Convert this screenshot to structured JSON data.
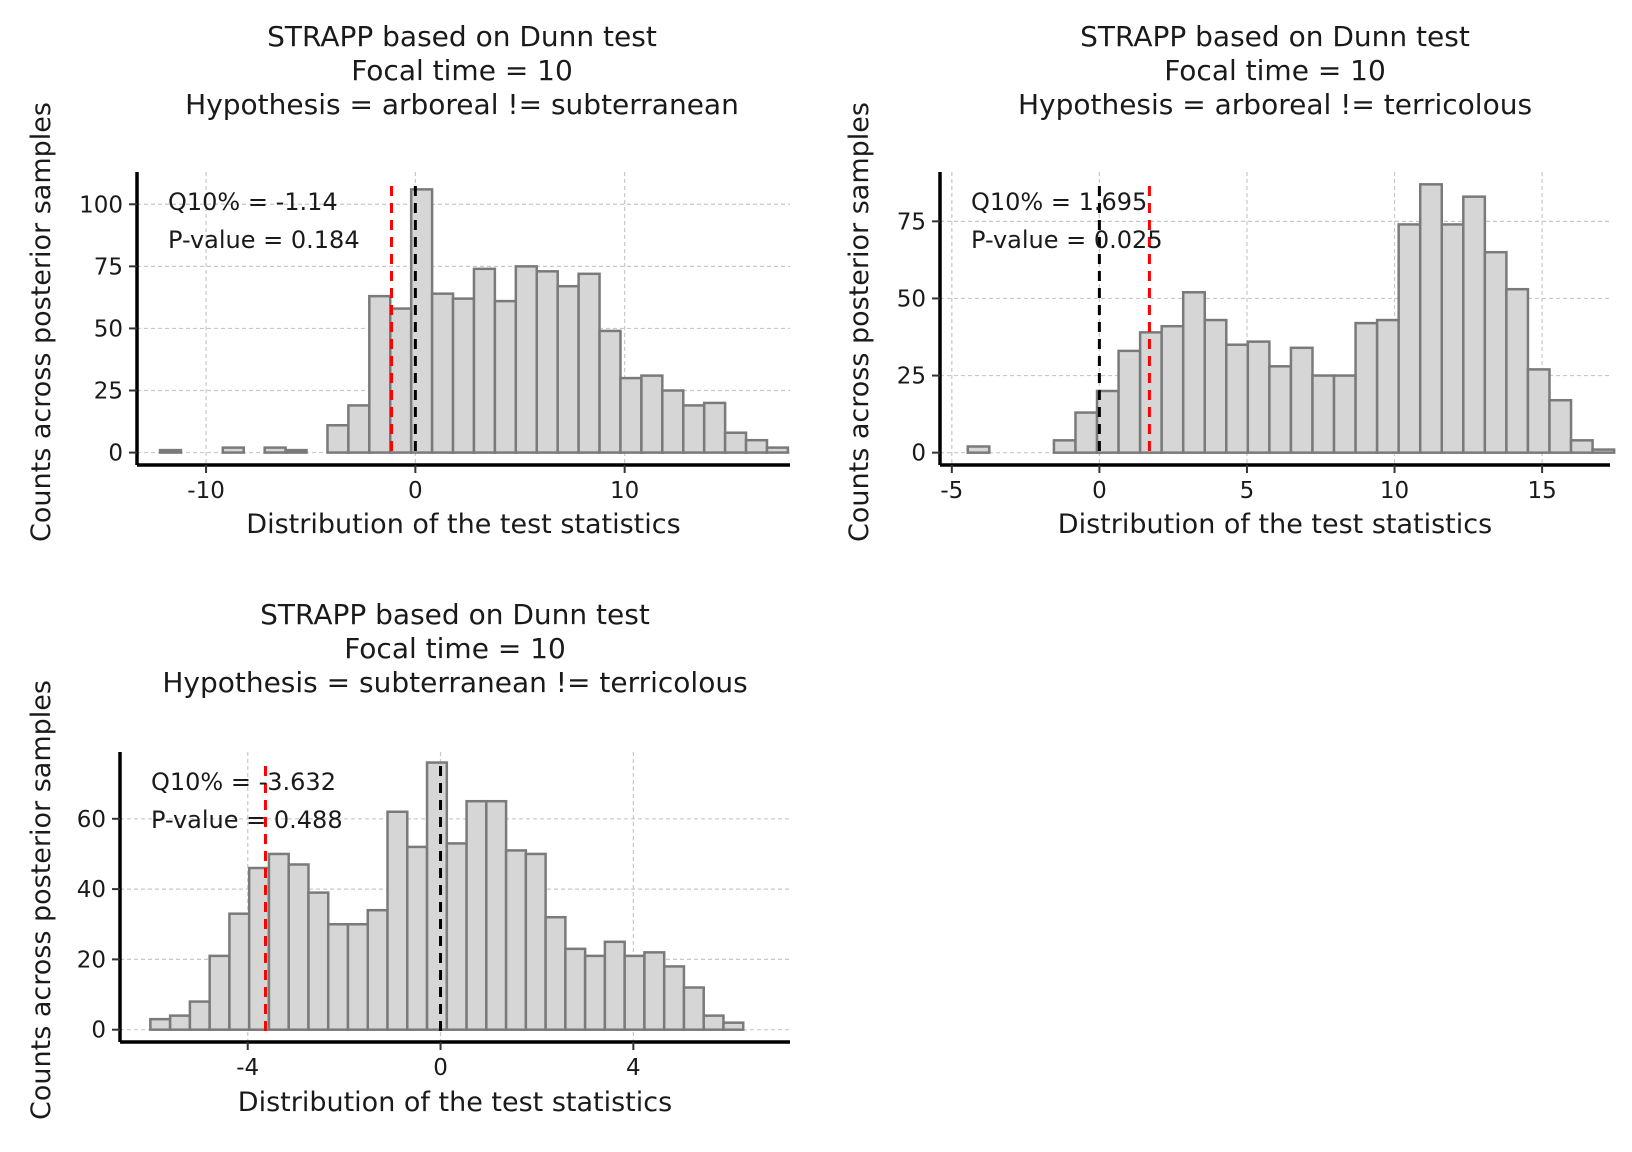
{
  "chart_data": [
    {
      "type": "bar",
      "title": [
        "STRAPP based on Dunn test",
        "Focal time = 10",
        "Hypothesis = arboreal != subterranean"
      ],
      "xlabel": "Distribution of the test statistics",
      "ylabel": "Counts across posterior samples",
      "xlim": [
        -13.3,
        17.9
      ],
      "ylim": [
        -5,
        113
      ],
      "xticks": [
        -10,
        0,
        10
      ],
      "yticks": [
        0,
        25,
        50,
        75,
        100
      ],
      "grid": true,
      "bins": [
        {
          "x0": -12.2,
          "x1": -11.2,
          "count": 1
        },
        {
          "x0": -11.2,
          "x1": -10.2,
          "count": 0
        },
        {
          "x0": -10.2,
          "x1": -9.2,
          "count": 0
        },
        {
          "x0": -9.2,
          "x1": -8.2,
          "count": 2
        },
        {
          "x0": -8.2,
          "x1": -7.2,
          "count": 0
        },
        {
          "x0": -7.2,
          "x1": -6.2,
          "count": 2
        },
        {
          "x0": -6.2,
          "x1": -5.2,
          "count": 1
        },
        {
          "x0": -5.2,
          "x1": -4.2,
          "count": 0
        },
        {
          "x0": -4.2,
          "x1": -3.2,
          "count": 11
        },
        {
          "x0": -3.2,
          "x1": -2.2,
          "count": 19
        },
        {
          "x0": -2.2,
          "x1": -1.2,
          "count": 63
        },
        {
          "x0": -1.2,
          "x1": -0.2,
          "count": 58
        },
        {
          "x0": -0.2,
          "x1": 0.8,
          "count": 106
        },
        {
          "x0": 0.8,
          "x1": 1.8,
          "count": 64
        },
        {
          "x0": 1.8,
          "x1": 2.8,
          "count": 62
        },
        {
          "x0": 2.8,
          "x1": 3.8,
          "count": 74
        },
        {
          "x0": 3.8,
          "x1": 4.8,
          "count": 61
        },
        {
          "x0": 4.8,
          "x1": 5.8,
          "count": 75
        },
        {
          "x0": 5.8,
          "x1": 6.8,
          "count": 73
        },
        {
          "x0": 6.8,
          "x1": 7.8,
          "count": 67
        },
        {
          "x0": 7.8,
          "x1": 8.8,
          "count": 72
        },
        {
          "x0": 8.8,
          "x1": 9.8,
          "count": 49
        },
        {
          "x0": 9.8,
          "x1": 10.8,
          "count": 30
        },
        {
          "x0": 10.8,
          "x1": 11.8,
          "count": 31
        },
        {
          "x0": 11.8,
          "x1": 12.8,
          "count": 25
        },
        {
          "x0": 12.8,
          "x1": 13.8,
          "count": 19
        },
        {
          "x0": 13.8,
          "x1": 14.8,
          "count": 20
        },
        {
          "x0": 14.8,
          "x1": 15.8,
          "count": 8
        },
        {
          "x0": 15.8,
          "x1": 16.8,
          "count": 5
        },
        {
          "x0": 16.8,
          "x1": 17.8,
          "count": 2
        }
      ],
      "vlines": [
        {
          "x": 0,
          "color": "#000000"
        },
        {
          "x": -1.14,
          "color": "#ff0000"
        }
      ],
      "annotations": [
        "Q10% = -1.14",
        "P-value = 0.184"
      ]
    },
    {
      "type": "bar",
      "title": [
        "STRAPP based on Dunn test",
        "Focal time = 10",
        "Hypothesis = arboreal != terricolous"
      ],
      "xlabel": "Distribution of the test statistics",
      "ylabel": "Counts across posterior samples",
      "xlim": [
        -5.4,
        17.3
      ],
      "ylim": [
        -4,
        91
      ],
      "xticks": [
        -5,
        0,
        5,
        10,
        15
      ],
      "yticks": [
        0,
        25,
        50,
        75
      ],
      "grid": true,
      "bins": [
        {
          "x0": -4.46,
          "x1": -3.73,
          "count": 2
        },
        {
          "x0": -3.73,
          "x1": -3.0,
          "count": 0
        },
        {
          "x0": -3.0,
          "x1": -2.27,
          "count": 0
        },
        {
          "x0": -2.27,
          "x1": -1.54,
          "count": 0
        },
        {
          "x0": -1.54,
          "x1": -0.81,
          "count": 4
        },
        {
          "x0": -0.81,
          "x1": -0.08,
          "count": 13
        },
        {
          "x0": -0.08,
          "x1": 0.65,
          "count": 20
        },
        {
          "x0": 0.65,
          "x1": 1.38,
          "count": 33
        },
        {
          "x0": 1.38,
          "x1": 2.11,
          "count": 39
        },
        {
          "x0": 2.11,
          "x1": 2.84,
          "count": 41
        },
        {
          "x0": 2.84,
          "x1": 3.57,
          "count": 52
        },
        {
          "x0": 3.57,
          "x1": 4.3,
          "count": 43
        },
        {
          "x0": 4.3,
          "x1": 5.03,
          "count": 35
        },
        {
          "x0": 5.03,
          "x1": 5.76,
          "count": 36
        },
        {
          "x0": 5.76,
          "x1": 6.49,
          "count": 28
        },
        {
          "x0": 6.49,
          "x1": 7.22,
          "count": 34
        },
        {
          "x0": 7.22,
          "x1": 7.95,
          "count": 25
        },
        {
          "x0": 7.95,
          "x1": 8.68,
          "count": 25
        },
        {
          "x0": 8.68,
          "x1": 9.41,
          "count": 42
        },
        {
          "x0": 9.41,
          "x1": 10.14,
          "count": 43
        },
        {
          "x0": 10.14,
          "x1": 10.87,
          "count": 74
        },
        {
          "x0": 10.87,
          "x1": 11.6,
          "count": 87
        },
        {
          "x0": 11.6,
          "x1": 12.33,
          "count": 74
        },
        {
          "x0": 12.33,
          "x1": 13.06,
          "count": 83
        },
        {
          "x0": 13.06,
          "x1": 13.79,
          "count": 65
        },
        {
          "x0": 13.79,
          "x1": 14.52,
          "count": 53
        },
        {
          "x0": 14.52,
          "x1": 15.25,
          "count": 27
        },
        {
          "x0": 15.25,
          "x1": 15.98,
          "count": 17
        },
        {
          "x0": 15.98,
          "x1": 16.71,
          "count": 4
        },
        {
          "x0": 16.71,
          "x1": 17.44,
          "count": 1
        }
      ],
      "vlines": [
        {
          "x": 0,
          "color": "#000000"
        },
        {
          "x": 1.695,
          "color": "#ff0000"
        }
      ],
      "annotations": [
        "Q10% = 1.695",
        "P-value = 0.025"
      ]
    },
    {
      "type": "bar",
      "title": [
        "STRAPP based on Dunn test",
        "Focal time = 10",
        "Hypothesis = subterranean != terricolous"
      ],
      "xlabel": "Distribution of the test statistics",
      "ylabel": "Counts across posterior samples",
      "xlim": [
        -6.65,
        7.25
      ],
      "ylim": [
        -3.5,
        79
      ],
      "xticks": [
        -4,
        0,
        4
      ],
      "yticks": [
        0,
        20,
        40,
        60
      ],
      "grid": true,
      "bins": [
        {
          "x0": -6.02,
          "x1": -5.61,
          "count": 3
        },
        {
          "x0": -5.61,
          "x1": -5.2,
          "count": 4
        },
        {
          "x0": -5.2,
          "x1": -4.79,
          "count": 8
        },
        {
          "x0": -4.79,
          "x1": -4.38,
          "count": 21
        },
        {
          "x0": -4.38,
          "x1": -3.97,
          "count": 33
        },
        {
          "x0": -3.97,
          "x1": -3.56,
          "count": 46
        },
        {
          "x0": -3.56,
          "x1": -3.15,
          "count": 50
        },
        {
          "x0": -3.15,
          "x1": -2.74,
          "count": 47
        },
        {
          "x0": -2.74,
          "x1": -2.33,
          "count": 39
        },
        {
          "x0": -2.33,
          "x1": -1.92,
          "count": 30
        },
        {
          "x0": -1.92,
          "x1": -1.51,
          "count": 30
        },
        {
          "x0": -1.51,
          "x1": -1.1,
          "count": 34
        },
        {
          "x0": -1.1,
          "x1": -0.69,
          "count": 62
        },
        {
          "x0": -0.69,
          "x1": -0.28,
          "count": 52
        },
        {
          "x0": -0.28,
          "x1": 0.13,
          "count": 76
        },
        {
          "x0": 0.13,
          "x1": 0.54,
          "count": 53
        },
        {
          "x0": 0.54,
          "x1": 0.95,
          "count": 65
        },
        {
          "x0": 0.95,
          "x1": 1.36,
          "count": 65
        },
        {
          "x0": 1.36,
          "x1": 1.77,
          "count": 51
        },
        {
          "x0": 1.77,
          "x1": 2.18,
          "count": 50
        },
        {
          "x0": 2.18,
          "x1": 2.59,
          "count": 32
        },
        {
          "x0": 2.59,
          "x1": 3.0,
          "count": 23
        },
        {
          "x0": 3.0,
          "x1": 3.41,
          "count": 21
        },
        {
          "x0": 3.41,
          "x1": 3.82,
          "count": 25
        },
        {
          "x0": 3.82,
          "x1": 4.23,
          "count": 21
        },
        {
          "x0": 4.23,
          "x1": 4.64,
          "count": 22
        },
        {
          "x0": 4.64,
          "x1": 5.05,
          "count": 18
        },
        {
          "x0": 5.05,
          "x1": 5.46,
          "count": 12
        },
        {
          "x0": 5.46,
          "x1": 5.87,
          "count": 4
        },
        {
          "x0": 5.87,
          "x1": 6.28,
          "count": 2
        }
      ],
      "vlines": [
        {
          "x": 0,
          "color": "#000000"
        },
        {
          "x": -3.632,
          "color": "#ff0000"
        }
      ],
      "annotations": [
        "Q10% = -3.632",
        "P-value = 0.488"
      ]
    }
  ],
  "colors": {
    "bar_fill": "#d6d6d6",
    "bar_stroke": "#7a7a7a",
    "grid": "#c8c8c8",
    "axis": "#000000"
  }
}
